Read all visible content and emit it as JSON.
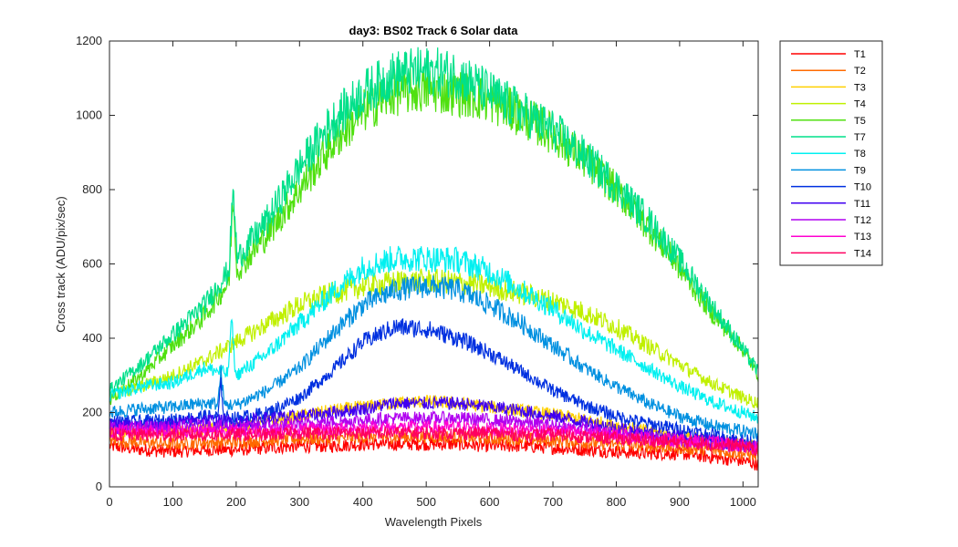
{
  "chart_data": {
    "type": "line",
    "title": "day3: BS02  Track 6 Solar data",
    "xlabel": "Wavelength Pixels",
    "ylabel": "Cross track (ADU/pix/sec)",
    "xlim": [
      0,
      1024
    ],
    "ylim": [
      0,
      1200
    ],
    "xticks": [
      0,
      100,
      200,
      300,
      400,
      500,
      600,
      700,
      800,
      900,
      1000
    ],
    "yticks": [
      0,
      200,
      400,
      600,
      800,
      1000,
      1200
    ],
    "grid": false,
    "legend": "outside-top-right",
    "x": [
      0,
      50,
      100,
      150,
      200,
      250,
      300,
      350,
      400,
      450,
      500,
      550,
      600,
      650,
      700,
      750,
      800,
      850,
      900,
      950,
      1000,
      1024
    ],
    "series": [
      {
        "name": "T1",
        "color": "#ff0000",
        "values": [
          110,
          100,
          95,
          100,
          100,
          105,
          110,
          110,
          115,
          115,
          115,
          115,
          110,
          110,
          105,
          100,
          95,
          90,
          90,
          80,
          70,
          60
        ]
      },
      {
        "name": "T2",
        "color": "#ff6a00",
        "values": [
          125,
          120,
          115,
          120,
          120,
          125,
          130,
          130,
          135,
          135,
          135,
          135,
          130,
          130,
          125,
          120,
          115,
          110,
          105,
          100,
          90,
          85
        ]
      },
      {
        "name": "T3",
        "color": "#ffd000",
        "values": [
          150,
          150,
          150,
          155,
          160,
          175,
          190,
          205,
          215,
          225,
          230,
          225,
          215,
          205,
          195,
          180,
          165,
          150,
          135,
          125,
          115,
          110
        ]
      },
      {
        "name": "T4",
        "color": "#c0f000",
        "values": [
          245,
          270,
          300,
          340,
          390,
          440,
          490,
          520,
          540,
          550,
          555,
          550,
          540,
          520,
          500,
          470,
          430,
          380,
          330,
          280,
          240,
          225
        ]
      },
      {
        "name": "T5",
        "color": "#50e010",
        "values": [
          235,
          300,
          380,
          460,
          580,
          680,
          800,
          920,
          1010,
          1060,
          1070,
          1060,
          1040,
          1000,
          950,
          880,
          800,
          700,
          590,
          470,
          370,
          300
        ]
      },
      {
        "name": "T7",
        "color": "#00e08a",
        "values": [
          260,
          330,
          410,
          490,
          610,
          720,
          860,
          980,
          1060,
          1110,
          1120,
          1110,
          1060,
          1010,
          960,
          890,
          810,
          720,
          610,
          490,
          370,
          310
        ]
      },
      {
        "name": "T8",
        "color": "#00f0f0",
        "values": [
          245,
          270,
          280,
          320,
          300,
          360,
          440,
          520,
          590,
          615,
          615,
          610,
          580,
          530,
          480,
          420,
          370,
          320,
          270,
          230,
          200,
          185
        ]
      },
      {
        "name": "T9",
        "color": "#0090e0",
        "values": [
          200,
          210,
          215,
          225,
          220,
          260,
          320,
          410,
          490,
          530,
          540,
          530,
          490,
          440,
          380,
          320,
          270,
          225,
          190,
          165,
          150,
          145
        ]
      },
      {
        "name": "T10",
        "color": "#0030e0",
        "values": [
          175,
          175,
          180,
          190,
          185,
          200,
          240,
          310,
          390,
          430,
          425,
          400,
          360,
          310,
          260,
          220,
          190,
          170,
          155,
          140,
          125,
          120
        ]
      },
      {
        "name": "T11",
        "color": "#4000f0",
        "values": [
          165,
          165,
          170,
          180,
          175,
          185,
          190,
          200,
          210,
          225,
          225,
          225,
          215,
          205,
          190,
          175,
          160,
          145,
          135,
          125,
          115,
          110
        ]
      },
      {
        "name": "T12",
        "color": "#b000f0",
        "values": [
          160,
          160,
          160,
          165,
          160,
          165,
          170,
          175,
          180,
          185,
          185,
          185,
          180,
          175,
          165,
          155,
          145,
          135,
          125,
          120,
          110,
          105
        ]
      },
      {
        "name": "T13",
        "color": "#ff00d0",
        "values": [
          150,
          150,
          150,
          150,
          150,
          150,
          155,
          155,
          160,
          160,
          160,
          160,
          155,
          155,
          150,
          145,
          140,
          130,
          125,
          120,
          110,
          105
        ]
      },
      {
        "name": "T14",
        "color": "#ff0060",
        "values": [
          140,
          140,
          140,
          140,
          140,
          140,
          145,
          145,
          145,
          145,
          145,
          145,
          145,
          140,
          140,
          135,
          130,
          125,
          120,
          115,
          110,
          100
        ]
      }
    ],
    "annotations_visible": "narrow spike near x=195 on T5/T7 (~820) and T8 (~500)"
  }
}
